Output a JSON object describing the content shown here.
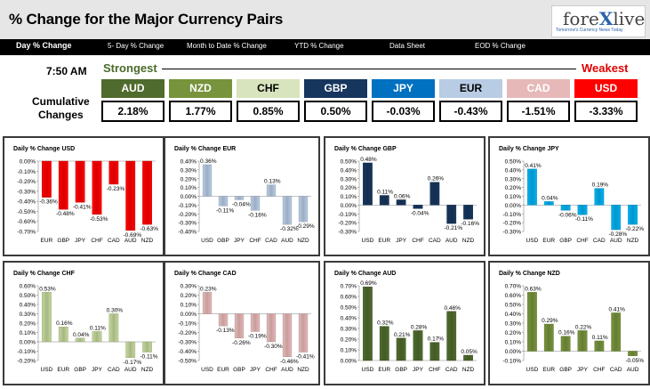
{
  "header": {
    "title": "% Change for the Major Currency Pairs",
    "logo_main": "forexlive",
    "logo_tagline": "Tomorrow's Currency News Today"
  },
  "nav": [
    "Day % Change",
    "5- Day % Change",
    "Month to Date % Change",
    "YTD % Change",
    "Data Sheet",
    "EOD % Change"
  ],
  "time": "7:50 AM",
  "strongest_label": "Strongest",
  "weakest_label": "Weakest",
  "cumulative_label_1": "Cumulative",
  "cumulative_label_2": "Changes",
  "currencies": [
    {
      "code": "AUD",
      "value": "2.18%",
      "bg": "#4f6b2d",
      "fg": "#ffffff"
    },
    {
      "code": "NZD",
      "value": "1.77%",
      "bg": "#77933c",
      "fg": "#ffffff"
    },
    {
      "code": "CHF",
      "value": "0.85%",
      "bg": "#d7e4bd",
      "fg": "#000000"
    },
    {
      "code": "GBP",
      "value": "0.50%",
      "bg": "#17365d",
      "fg": "#ffffff"
    },
    {
      "code": "JPY",
      "value": "-0.03%",
      "bg": "#0070c0",
      "fg": "#ffffff"
    },
    {
      "code": "EUR",
      "value": "-0.43%",
      "bg": "#b8cce4",
      "fg": "#000000"
    },
    {
      "code": "CAD",
      "value": "-1.51%",
      "bg": "#e6b9b8",
      "fg": "#ffffff"
    },
    {
      "code": "USD",
      "value": "-3.33%",
      "bg": "#ff0000",
      "fg": "#ffffff"
    }
  ],
  "chart_data": [
    {
      "type": "bar",
      "title": "Daily % Change USD",
      "color": "#ff0000",
      "categories": [
        "EUR",
        "GBP",
        "JPY",
        "CHF",
        "CAD",
        "AUD",
        "NZD"
      ],
      "values": [
        -0.36,
        -0.48,
        -0.41,
        -0.53,
        -0.23,
        -0.69,
        -0.63
      ],
      "labels": [
        "-0.36%",
        "-0.48%",
        "-0.41%",
        "-0.53%",
        "-0.23%",
        "-0.69%",
        "-0.63%"
      ],
      "ylim": [
        -0.7,
        0.0
      ],
      "ticks": [
        "0.00%",
        "-0.10%",
        "-0.20%",
        "-0.30%",
        "-0.40%",
        "-0.50%",
        "-0.60%",
        "-0.70%"
      ]
    },
    {
      "type": "bar",
      "title": "Daily % Change EUR",
      "color": "#b8cce4",
      "categories": [
        "USD",
        "GBP",
        "JPY",
        "CHF",
        "CAD",
        "AUD",
        "NZD"
      ],
      "values": [
        0.36,
        -0.11,
        -0.04,
        -0.16,
        0.13,
        -0.32,
        -0.29
      ],
      "labels": [
        "0.36%",
        "-0.11%",
        "-0.04%",
        "-0.16%",
        "0.13%",
        "-0.32%",
        "-0.29%"
      ],
      "ylim": [
        -0.4,
        0.4
      ],
      "ticks": [
        "0.40%",
        "0.30%",
        "0.20%",
        "0.10%",
        "0.00%",
        "-0.10%",
        "-0.20%",
        "-0.30%",
        "-0.40%"
      ]
    },
    {
      "type": "bar",
      "title": "Daily % Change GBP",
      "color": "#17365d",
      "categories": [
        "USD",
        "EUR",
        "JPY",
        "CHF",
        "CAD",
        "AUD",
        "NZD"
      ],
      "values": [
        0.48,
        0.11,
        0.06,
        -0.04,
        0.26,
        -0.21,
        -0.16
      ],
      "labels": [
        "0.48%",
        "0.11%",
        "0.06%",
        "-0.04%",
        "0.26%",
        "-0.21%",
        "-0.16%"
      ],
      "ylim": [
        -0.3,
        0.5
      ],
      "ticks": [
        "0.50%",
        "0.40%",
        "0.30%",
        "0.20%",
        "0.10%",
        "0.00%",
        "-0.10%",
        "-0.20%",
        "-0.30%"
      ]
    },
    {
      "type": "bar",
      "title": "Daily % Change JPY",
      "color": "#00b0f0",
      "categories": [
        "USD",
        "EUR",
        "GBP",
        "CHF",
        "CAD",
        "AUD",
        "NZD"
      ],
      "values": [
        0.41,
        0.04,
        -0.06,
        -0.11,
        0.19,
        -0.28,
        -0.22
      ],
      "labels": [
        "0.41%",
        "0.04%",
        "-0.06%",
        "-0.11%",
        "0.19%",
        "-0.28%",
        "-0.22%"
      ],
      "ylim": [
        -0.3,
        0.5
      ],
      "ticks": [
        "0.50%",
        "0.40%",
        "0.30%",
        "0.20%",
        "0.10%",
        "0.00%",
        "-0.10%",
        "-0.20%",
        "-0.30%"
      ]
    },
    {
      "type": "bar",
      "title": "Daily % Change CHF",
      "color": "#c4d79b",
      "categories": [
        "USD",
        "EUR",
        "GBP",
        "JPY",
        "CAD",
        "AUD",
        "NZD"
      ],
      "values": [
        0.53,
        0.16,
        0.04,
        0.11,
        0.3,
        -0.17,
        -0.11
      ],
      "labels": [
        "0.53%",
        "0.16%",
        "0.04%",
        "0.11%",
        "0.30%",
        "-0.17%",
        "-0.11%"
      ],
      "ylim": [
        -0.2,
        0.6
      ],
      "ticks": [
        "0.60%",
        "0.50%",
        "0.40%",
        "0.30%",
        "0.20%",
        "0.10%",
        "0.00%",
        "-0.10%",
        "-0.20%"
      ]
    },
    {
      "type": "bar",
      "title": "Daily % Change CAD",
      "color": "#e6b9b8",
      "categories": [
        "USD",
        "EUR",
        "GBP",
        "JPY",
        "CHF",
        "AUD",
        "NZD"
      ],
      "values": [
        0.23,
        -0.13,
        -0.26,
        -0.19,
        -0.3,
        -0.46,
        -0.41
      ],
      "labels": [
        "0.23%",
        "-0.13%",
        "-0.26%",
        "-0.19%",
        "-0.30%",
        "-0.46%",
        "-0.41%"
      ],
      "ylim": [
        -0.5,
        0.3
      ],
      "ticks": [
        "0.30%",
        "0.20%",
        "0.10%",
        "0.00%",
        "-0.10%",
        "-0.20%",
        "-0.30%",
        "-0.40%",
        "-0.50%"
      ]
    },
    {
      "type": "bar",
      "title": "Daily % Change AUD",
      "color": "#4f6b2d",
      "categories": [
        "USD",
        "EUR",
        "GBP",
        "JPY",
        "CHF",
        "CAD",
        "NZD"
      ],
      "values": [
        0.69,
        0.32,
        0.21,
        0.28,
        0.17,
        0.46,
        0.05
      ],
      "labels": [
        "0.69%",
        "0.32%",
        "0.21%",
        "0.28%",
        "0.17%",
        "0.46%",
        "0.05%"
      ],
      "ylim": [
        0.0,
        0.7
      ],
      "ticks": [
        "0.70%",
        "0.60%",
        "0.50%",
        "0.40%",
        "0.30%",
        "0.20%",
        "0.10%",
        "0.00%"
      ]
    },
    {
      "type": "bar",
      "title": "Daily % Change NZD",
      "color": "#77933c",
      "categories": [
        "USD",
        "EUR",
        "GBP",
        "JPY",
        "CHF",
        "CAD",
        "AUD"
      ],
      "values": [
        0.63,
        0.29,
        0.16,
        0.22,
        0.11,
        0.41,
        -0.05
      ],
      "labels": [
        "0.63%",
        "0.29%",
        "0.16%",
        "0.22%",
        "0.11%",
        "0.41%",
        "-0.05%"
      ],
      "ylim": [
        -0.1,
        0.7
      ],
      "ticks": [
        "0.70%",
        "0.60%",
        "0.50%",
        "0.40%",
        "0.30%",
        "0.20%",
        "0.10%",
        "0.00%",
        "-0.10%"
      ]
    }
  ]
}
